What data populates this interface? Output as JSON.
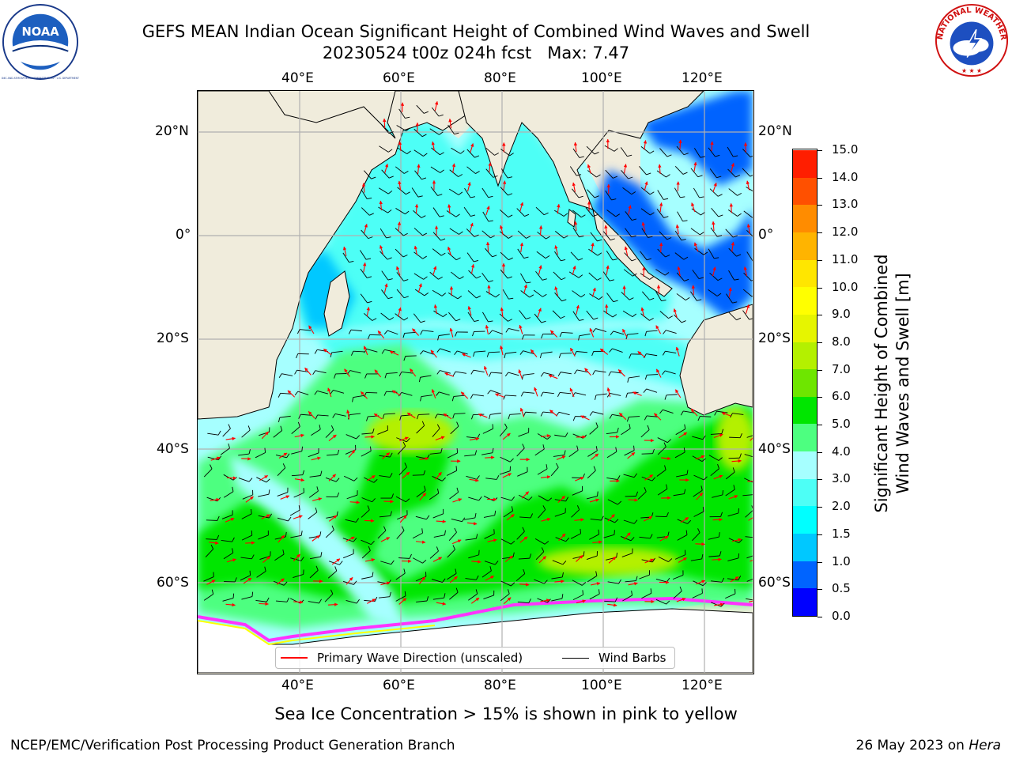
{
  "header": {
    "title_line1": "GEFS MEAN Indian Ocean Significant Height of Combined Wind Waves and Swell",
    "title_line2": "20230524 t00z 024h fcst   Max: 7.47"
  },
  "map": {
    "lon_ticks": [
      "40°E",
      "60°E",
      "80°E",
      "100°E",
      "120°E"
    ],
    "lat_ticks": [
      "20°N",
      "0°",
      "20°S",
      "40°S",
      "60°S"
    ],
    "legend": {
      "wave_direction": "Primary Wave Direction (unscaled)",
      "wind_barbs": "Wind Barbs"
    },
    "colors": {
      "land": "#f0ecdc",
      "wave_arrow": "#ff0000",
      "sea_ice": "#ff33ff",
      "wind_barb": "#000000"
    }
  },
  "colorbar": {
    "title_line1": "Significant Height of Combined",
    "title_line2": "Wind Waves and Swell [m]",
    "ticks": [
      "0.0",
      "0.5",
      "1.0",
      "1.5",
      "2.0",
      "3.0",
      "4.0",
      "5.0",
      "6.0",
      "7.0",
      "8.0",
      "9.0",
      "10.0",
      "11.0",
      "12.0",
      "13.0",
      "14.0",
      "15.0"
    ],
    "colors": [
      "#0000ff",
      "#0064ff",
      "#00c8ff",
      "#00ffff",
      "#4dfff6",
      "#a6ffff",
      "#4dff80",
      "#00e600",
      "#6ee600",
      "#b4f000",
      "#e6f500",
      "#ffff00",
      "#ffe600",
      "#ffb400",
      "#ff8c00",
      "#ff5000",
      "#ff1e00"
    ]
  },
  "footer": {
    "ice_note": "Sea Ice Concentration > 15% is shown in pink to yellow",
    "credit": "NCEP/EMC/Verification Post Processing Product Generation Branch",
    "date": "26 May 2023 on",
    "host": "Hera"
  },
  "logos": {
    "noaa_text": "NOAA",
    "nws_text": "NATIONAL WEATHER SERVICE",
    "noaa_ring_text": "NATIONAL OCEANIC AND ATMOSPHERIC ADMINISTRATION • U.S. DEPARTMENT OF COMMERCE"
  }
}
